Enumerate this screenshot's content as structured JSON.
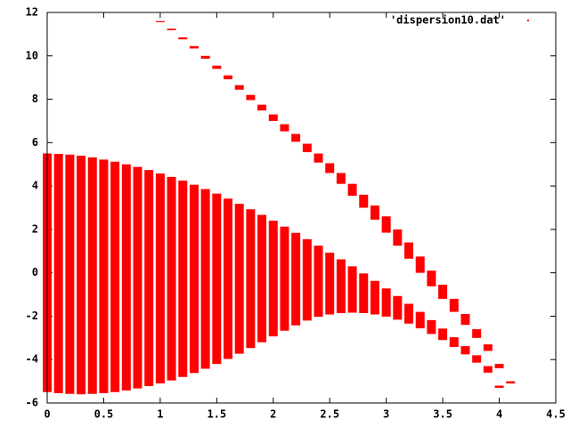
{
  "chart_data": {
    "type": "range",
    "legend_label": "'dispersion10.dat'",
    "legend": "top right",
    "color": "#ff0000",
    "xlim": [
      0,
      4.5
    ],
    "xticks": [
      0,
      0.5,
      1,
      1.5,
      2,
      2.5,
      3,
      3.5,
      4,
      4.5
    ],
    "ylim": [
      -6,
      12
    ],
    "yticks": [
      -6,
      -4,
      -2,
      0,
      2,
      4,
      6,
      8,
      10,
      12
    ],
    "bands": [
      {
        "x": [
          0,
          0.1,
          0.2,
          0.3,
          0.4,
          0.5,
          0.6,
          0.7,
          0.8,
          0.9,
          1.0,
          1.1,
          1.2,
          1.3,
          1.4,
          1.5,
          1.6,
          1.7,
          1.8,
          1.9,
          2.0,
          2.1,
          2.2,
          2.3,
          2.4,
          2.5,
          2.6,
          2.7,
          2.8,
          2.9,
          3.0,
          3.1,
          3.2,
          3.3,
          3.4,
          3.5,
          3.6,
          3.7,
          3.8,
          3.9,
          4.0
        ],
        "low": [
          -5.5,
          -5.55,
          -5.58,
          -5.6,
          -5.58,
          -5.55,
          -5.5,
          -5.42,
          -5.33,
          -5.22,
          -5.1,
          -4.96,
          -4.8,
          -4.62,
          -4.42,
          -4.2,
          -3.97,
          -3.73,
          -3.47,
          -3.2,
          -2.93,
          -2.67,
          -2.42,
          -2.2,
          -2.03,
          -1.92,
          -1.86,
          -1.84,
          -1.86,
          -1.92,
          -2.02,
          -2.16,
          -2.34,
          -2.56,
          -2.82,
          -3.1,
          -3.42,
          -3.76,
          -4.14,
          -4.6,
          -5.3
        ],
        "high": [
          5.5,
          5.48,
          5.45,
          5.4,
          5.32,
          5.22,
          5.12,
          5.0,
          4.88,
          4.74,
          4.58,
          4.42,
          4.25,
          4.06,
          3.86,
          3.65,
          3.42,
          3.18,
          2.93,
          2.67,
          2.4,
          2.13,
          1.84,
          1.55,
          1.25,
          0.93,
          0.62,
          0.3,
          -0.03,
          -0.37,
          -0.72,
          -1.07,
          -1.43,
          -1.8,
          -2.18,
          -2.57,
          -2.97,
          -3.38,
          -3.8,
          -4.3,
          -5.2
        ]
      },
      {
        "x": [
          1.0,
          1.1,
          1.2,
          1.3,
          1.4,
          1.5,
          1.6,
          1.7,
          1.8,
          1.9,
          2.0,
          2.1,
          2.2,
          2.3,
          2.4,
          2.5,
          2.6,
          2.7,
          2.8,
          2.9,
          3.0,
          3.1,
          3.2,
          3.3,
          3.4,
          3.5,
          3.6,
          3.7,
          3.8,
          3.9,
          4.0,
          4.1
        ],
        "low": [
          11.55,
          11.18,
          10.76,
          10.34,
          9.87,
          9.4,
          8.92,
          8.44,
          7.96,
          7.48,
          7.0,
          6.52,
          6.04,
          5.56,
          5.08,
          4.6,
          4.1,
          3.55,
          3.0,
          2.45,
          1.85,
          1.25,
          0.65,
          0.0,
          -0.62,
          -1.2,
          -1.8,
          -2.4,
          -3.0,
          -3.6,
          -4.4,
          -5.1
        ],
        "high": [
          11.6,
          11.25,
          10.85,
          10.45,
          10.0,
          9.55,
          9.1,
          8.65,
          8.2,
          7.75,
          7.3,
          6.85,
          6.4,
          5.95,
          5.5,
          5.05,
          4.6,
          4.1,
          3.6,
          3.1,
          2.6,
          2.0,
          1.4,
          0.75,
          0.1,
          -0.55,
          -1.2,
          -1.9,
          -2.6,
          -3.3,
          -4.2,
          -5.0
        ]
      }
    ]
  }
}
